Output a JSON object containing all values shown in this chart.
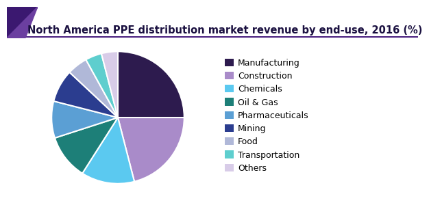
{
  "title": "North America PPE distribution market revenue by end-use, 2016 (%)",
  "labels": [
    "Manufacturing",
    "Construction",
    "Chemicals",
    "Oil & Gas",
    "Pharmaceuticals",
    "Mining",
    "Food",
    "Transportation",
    "Others"
  ],
  "values": [
    25,
    21,
    13,
    11,
    9,
    8,
    5,
    4,
    4
  ],
  "colors": [
    "#2d1b4e",
    "#a98bc9",
    "#5bc9f0",
    "#1d7f78",
    "#5b9fd4",
    "#2b3d8f",
    "#b0b8d8",
    "#5ecece",
    "#d8cce8"
  ],
  "title_fontsize": 10.5,
  "legend_fontsize": 9,
  "background_color": "#ffffff",
  "startangle": 90,
  "wedge_linewidth": 1.5,
  "wedge_linecolor": "#ffffff",
  "corner_color1": "#3b1870",
  "corner_color2": "#6b3fa0",
  "title_bar_color": "#4a2080",
  "title_color": "#1a1040"
}
